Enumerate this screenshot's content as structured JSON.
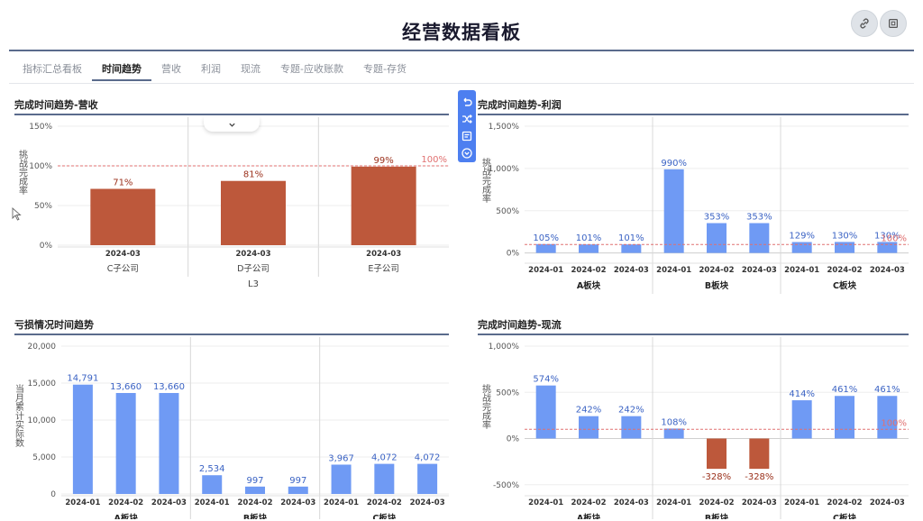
{
  "header": {
    "title": "经营数据看板",
    "share_icon": "link-icon",
    "fullscreen_icon": "fullscreen-icon"
  },
  "tabs": [
    {
      "label": "指标汇总看板",
      "active": false
    },
    {
      "label": "时间趋势",
      "active": true
    },
    {
      "label": "营收",
      "active": false
    },
    {
      "label": "利润",
      "active": false
    },
    {
      "label": "现流",
      "active": false
    },
    {
      "label": "专题-应收账款",
      "active": false
    },
    {
      "label": "专题-存货",
      "active": false
    }
  ],
  "toolbar": {
    "icons": [
      "undo-icon",
      "shuffle-icon",
      "comment-icon",
      "collapse-icon"
    ]
  },
  "colors": {
    "accent_line": "#5a6b8c",
    "bar_blue": "#6f9af4",
    "bar_red": "#bd583b",
    "label_blue": "#3b63c4",
    "label_red": "#9a2f1a",
    "ref_line": "#e07070"
  },
  "panels": {
    "revenue": {
      "title": "完成时间趋势-营收"
    },
    "profit": {
      "title": "完成时间趋势-利润"
    },
    "loss": {
      "title": "亏损情况时间趋势"
    },
    "cashflow": {
      "title": "完成时间趋势-现流"
    }
  },
  "chart_data": [
    {
      "id": "revenue",
      "type": "bar",
      "ylabel": "挑战完成率",
      "yticks": [
        "0%",
        "50%",
        "100%",
        "150%"
      ],
      "ylim": [
        0,
        150
      ],
      "reference_line": {
        "value": 100,
        "label": "100%"
      },
      "groups": [
        {
          "name": "C子公司",
          "categories": [
            "2024-03"
          ],
          "values": [
            71
          ],
          "labels": [
            "71%"
          ]
        },
        {
          "name": "D子公司",
          "categories": [
            "2024-03"
          ],
          "values": [
            81
          ],
          "labels": [
            "81%"
          ]
        },
        {
          "name": "E子公司",
          "categories": [
            "2024-03"
          ],
          "values": [
            99
          ],
          "labels": [
            "99%"
          ]
        }
      ],
      "group_axis_label": "L3",
      "bar_color": "red"
    },
    {
      "id": "profit",
      "type": "bar",
      "ylabel": "挑战完成率",
      "yticks": [
        "0%",
        "500%",
        "1,000%",
        "1,500%"
      ],
      "ylim": [
        -100,
        1500
      ],
      "reference_line": {
        "value": 100,
        "label": "100%"
      },
      "groups": [
        {
          "name": "A板块",
          "categories": [
            "2024-01",
            "2024-02",
            "2024-03"
          ],
          "values": [
            105,
            101,
            101
          ],
          "labels": [
            "105%",
            "101%",
            "101%"
          ]
        },
        {
          "name": "B板块",
          "categories": [
            "2024-01",
            "2024-02",
            "2024-03"
          ],
          "values": [
            990,
            353,
            353
          ],
          "labels": [
            "990%",
            "353%",
            "353%"
          ]
        },
        {
          "name": "C板块",
          "categories": [
            "2024-01",
            "2024-02",
            "2024-03"
          ],
          "values": [
            129,
            130,
            130
          ],
          "labels": [
            "129%",
            "130%",
            "130%"
          ]
        }
      ],
      "bar_color": "blue"
    },
    {
      "id": "loss",
      "type": "bar",
      "ylabel": "当月累计实际数",
      "yticks": [
        "0",
        "5,000",
        "10,000",
        "15,000",
        "20,000"
      ],
      "ylim": [
        0,
        20000
      ],
      "groups": [
        {
          "name": "A板块",
          "categories": [
            "2024-01",
            "2024-02",
            "2024-03"
          ],
          "values": [
            14791,
            13660,
            13660
          ],
          "labels": [
            "14,791",
            "13,660",
            "13,660"
          ]
        },
        {
          "name": "B板块",
          "categories": [
            "2024-01",
            "2024-02",
            "2024-03"
          ],
          "values": [
            2534,
            997,
            997
          ],
          "labels": [
            "2,534",
            "997",
            "997"
          ]
        },
        {
          "name": "C板块",
          "categories": [
            "2024-01",
            "2024-02",
            "2024-03"
          ],
          "values": [
            3967,
            4072,
            4072
          ],
          "labels": [
            "3,967",
            "4,072",
            "4,072"
          ]
        }
      ],
      "bar_color": "blue"
    },
    {
      "id": "cashflow",
      "type": "bar",
      "ylabel": "挑战完成率",
      "yticks": [
        "-500%",
        "0%",
        "500%",
        "1,000%"
      ],
      "ylim": [
        -600,
        1000
      ],
      "reference_line": {
        "value": 100,
        "label": "100%"
      },
      "groups": [
        {
          "name": "A板块",
          "categories": [
            "2024-01",
            "2024-02",
            "2024-03"
          ],
          "values": [
            574,
            242,
            242
          ],
          "labels": [
            "574%",
            "242%",
            "242%"
          ]
        },
        {
          "name": "B板块",
          "categories": [
            "2024-01",
            "2024-02",
            "2024-03"
          ],
          "values": [
            108,
            -328,
            -328
          ],
          "labels": [
            "108%",
            "-328%",
            "-328%"
          ]
        },
        {
          "name": "C板块",
          "categories": [
            "2024-01",
            "2024-02",
            "2024-03"
          ],
          "values": [
            414,
            461,
            461
          ],
          "labels": [
            "414%",
            "461%",
            "461%"
          ]
        }
      ],
      "bar_color": "mixed"
    }
  ]
}
